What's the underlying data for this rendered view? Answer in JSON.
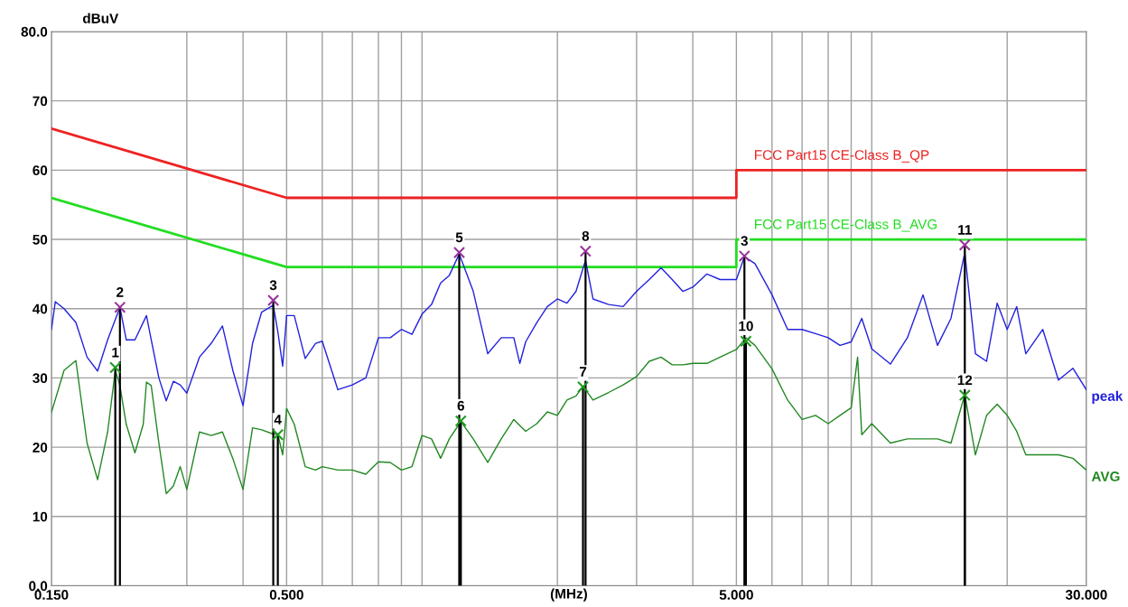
{
  "chart_data": {
    "type": "line",
    "xlabel": "(MHz)",
    "ylabel": "dBuV",
    "log": "x",
    "grid": true,
    "legend": false,
    "xlim": [
      0.15,
      30
    ],
    "ylim": [
      0,
      80
    ],
    "xticks": [
      {
        "value": 0.15,
        "label": "0.150"
      },
      {
        "value": 0.3,
        "label": null
      },
      {
        "value": 0.4,
        "label": null
      },
      {
        "value": 0.5,
        "label": "0.500"
      },
      {
        "value": 0.6,
        "label": null
      },
      {
        "value": 0.7,
        "label": null
      },
      {
        "value": 0.8,
        "label": null
      },
      {
        "value": 0.9,
        "label": null
      },
      {
        "value": 1,
        "label": null
      },
      {
        "value": 2,
        "label": null
      },
      {
        "value": 3,
        "label": null
      },
      {
        "value": 4,
        "label": null
      },
      {
        "value": 5,
        "label": "5.000"
      },
      {
        "value": 6,
        "label": null
      },
      {
        "value": 7,
        "label": null
      },
      {
        "value": 8,
        "label": null
      },
      {
        "value": 9,
        "label": null
      },
      {
        "value": 10,
        "label": null
      },
      {
        "value": 20,
        "label": null
      },
      {
        "value": 30,
        "label": "30.000"
      }
    ],
    "yticks": [
      {
        "value": 0,
        "label": "0.0"
      },
      10,
      20,
      30,
      40,
      50,
      60,
      70,
      {
        "value": 80,
        "label": "80.0"
      }
    ],
    "series": [
      {
        "name": "FCC Part15 CE-Class B_QP",
        "marker": "none",
        "color": "#ee2222",
        "x": [
          0.15,
          0.5,
          5,
          5,
          30
        ],
        "values": [
          66,
          56,
          56,
          60,
          60
        ]
      },
      {
        "name": "FCC Part15 CE-Class B_AVG",
        "marker": "none",
        "color": "#22dd22",
        "x": [
          0.15,
          0.5,
          5,
          5,
          30
        ],
        "values": [
          56,
          46,
          46,
          50,
          50
        ]
      },
      {
        "name": "peak",
        "marker": "none",
        "color": "#2222dd",
        "x": [
          0.15,
          0.153,
          0.16,
          0.17,
          0.18,
          0.19,
          0.2,
          0.213,
          0.22,
          0.23,
          0.244,
          0.25,
          0.26,
          0.27,
          0.28,
          0.29,
          0.3,
          0.32,
          0.34,
          0.36,
          0.38,
          0.4,
          0.42,
          0.44,
          0.467,
          0.478,
          0.49,
          0.5,
          0.52,
          0.55,
          0.58,
          0.6,
          0.65,
          0.7,
          0.75,
          0.8,
          0.85,
          0.9,
          0.95,
          1.0,
          1.05,
          1.1,
          1.15,
          1.21,
          1.3,
          1.4,
          1.5,
          1.6,
          1.65,
          1.7,
          1.8,
          1.9,
          2.0,
          2.1,
          2.2,
          2.31,
          2.4,
          2.6,
          2.8,
          3.0,
          3.2,
          3.4,
          3.6,
          3.8,
          4.0,
          4.3,
          4.6,
          5.0,
          5.21,
          5.5,
          6.0,
          6.5,
          7.0,
          7.5,
          8.0,
          8.5,
          9.0,
          9.5,
          10,
          11,
          12,
          13,
          14,
          15,
          16.1,
          17,
          18,
          19,
          20,
          21,
          22,
          24,
          26,
          28,
          30
        ],
        "values": [
          37,
          41,
          40,
          38,
          33,
          31,
          35.5,
          40.2,
          35.5,
          35.5,
          39,
          35.5,
          30,
          26.7,
          29.5,
          29,
          27.8,
          33,
          35,
          37.5,
          31,
          26,
          35,
          39.5,
          40.5,
          36.7,
          31.7,
          39,
          39,
          32.8,
          35,
          35.3,
          28.3,
          29,
          30,
          35.8,
          35.8,
          37,
          36.3,
          39.2,
          40.6,
          43.7,
          44.8,
          47.9,
          42.5,
          33.5,
          35.8,
          35.8,
          32.1,
          35.2,
          38,
          40.3,
          41.4,
          40.8,
          42.5,
          47,
          41.4,
          40.6,
          40.3,
          42.5,
          44.2,
          45.9,
          44.2,
          42.5,
          43.1,
          45,
          44.2,
          44.2,
          47.5,
          46.5,
          42,
          37,
          37,
          36.4,
          35.8,
          34.7,
          35.2,
          38.6,
          34.2,
          32,
          35.8,
          42,
          34.7,
          38.6,
          48.1,
          33.5,
          32.4,
          40.8,
          37,
          40.3,
          33.5,
          37,
          29.7,
          31.4,
          28.3
        ]
      },
      {
        "name": "AVG",
        "marker": "none",
        "color": "#228822",
        "x": [
          0.15,
          0.16,
          0.17,
          0.18,
          0.19,
          0.2,
          0.208,
          0.213,
          0.22,
          0.23,
          0.24,
          0.244,
          0.25,
          0.26,
          0.27,
          0.28,
          0.29,
          0.3,
          0.32,
          0.34,
          0.36,
          0.38,
          0.4,
          0.42,
          0.44,
          0.467,
          0.478,
          0.49,
          0.5,
          0.52,
          0.55,
          0.58,
          0.6,
          0.65,
          0.7,
          0.75,
          0.8,
          0.85,
          0.9,
          0.95,
          1.0,
          1.05,
          1.1,
          1.15,
          1.22,
          1.3,
          1.4,
          1.5,
          1.6,
          1.7,
          1.8,
          1.9,
          2.0,
          2.1,
          2.2,
          2.28,
          2.4,
          2.6,
          2.8,
          3.0,
          3.2,
          3.4,
          3.6,
          3.8,
          4.0,
          4.3,
          4.6,
          5.0,
          5.25,
          5.5,
          6.0,
          6.5,
          7.0,
          7.5,
          8.0,
          8.5,
          9.0,
          9.3,
          9.5,
          10,
          11,
          12,
          13,
          14,
          15,
          16.1,
          17,
          18,
          19,
          20,
          21,
          22,
          24,
          26,
          28,
          30
        ],
        "values": [
          25,
          31.1,
          32.5,
          20.6,
          15.3,
          22.2,
          31.1,
          28.9,
          23.3,
          19.2,
          23.3,
          29.4,
          28.9,
          20.6,
          13.3,
          14.4,
          17.2,
          13.9,
          22.2,
          21.7,
          22.2,
          18.3,
          13.9,
          22.8,
          22.5,
          21.9,
          21.9,
          18.9,
          25.6,
          23.3,
          17.2,
          16.7,
          17.2,
          16.7,
          16.7,
          16.1,
          17.9,
          17.8,
          16.7,
          17.2,
          21.7,
          21.2,
          18.4,
          21.2,
          23.7,
          21.2,
          17.8,
          21.2,
          24,
          22.3,
          23.4,
          25.1,
          24.6,
          26.8,
          27.4,
          28.8,
          26.8,
          27.9,
          29,
          30.2,
          32.4,
          33,
          31.9,
          31.9,
          32.1,
          32.1,
          33,
          34.1,
          35.8,
          34.7,
          31.3,
          26.8,
          24,
          24.6,
          23.4,
          24.6,
          25.7,
          33,
          21.8,
          23.4,
          20.6,
          21.2,
          21.2,
          21.2,
          20.6,
          27.6,
          18.9,
          24.6,
          26.2,
          24.6,
          22.3,
          18.9,
          18.9,
          18.9,
          18.4,
          16.7
        ]
      },
      {
        "type": "lollipop",
        "marker": "cross",
        "color": "#993399",
        "x": [
          0.213,
          0.467,
          1.21,
          2.31,
          5.21,
          16.1
        ],
        "values": [
          40.2,
          41.2,
          48.1,
          48.3,
          47.6,
          49.2
        ]
      },
      {
        "type": "lollipop",
        "marker": "cross",
        "color": "#229922",
        "x": [
          0.208,
          0.478,
          1.22,
          2.28,
          5.25,
          16.1
        ],
        "values": [
          31.5,
          21.8,
          23.8,
          28.7,
          35.3,
          27.5
        ]
      }
    ],
    "annotations": [
      {
        "text": "1",
        "x": 0.208,
        "y": 31.5
      },
      {
        "text": "2",
        "x": 0.213,
        "y": 40.2
      },
      {
        "text": "3",
        "x": 0.467,
        "y": 41.2
      },
      {
        "text": "4",
        "x": 0.478,
        "y": 21.8
      },
      {
        "text": "5",
        "x": 1.21,
        "y": 48.1
      },
      {
        "text": "6",
        "x": 1.22,
        "y": 23.8
      },
      {
        "text": "7",
        "x": 2.28,
        "y": 28.7
      },
      {
        "text": "8",
        "x": 2.31,
        "y": 48.3
      },
      {
        "text": "3",
        "x": 5.21,
        "y": 47.6
      },
      {
        "text": "10",
        "x": 5.25,
        "y": 35.3
      },
      {
        "text": "11",
        "x": 16.1,
        "y": 49.2
      },
      {
        "text": "12",
        "x": 16.1,
        "y": 27.5
      }
    ]
  }
}
